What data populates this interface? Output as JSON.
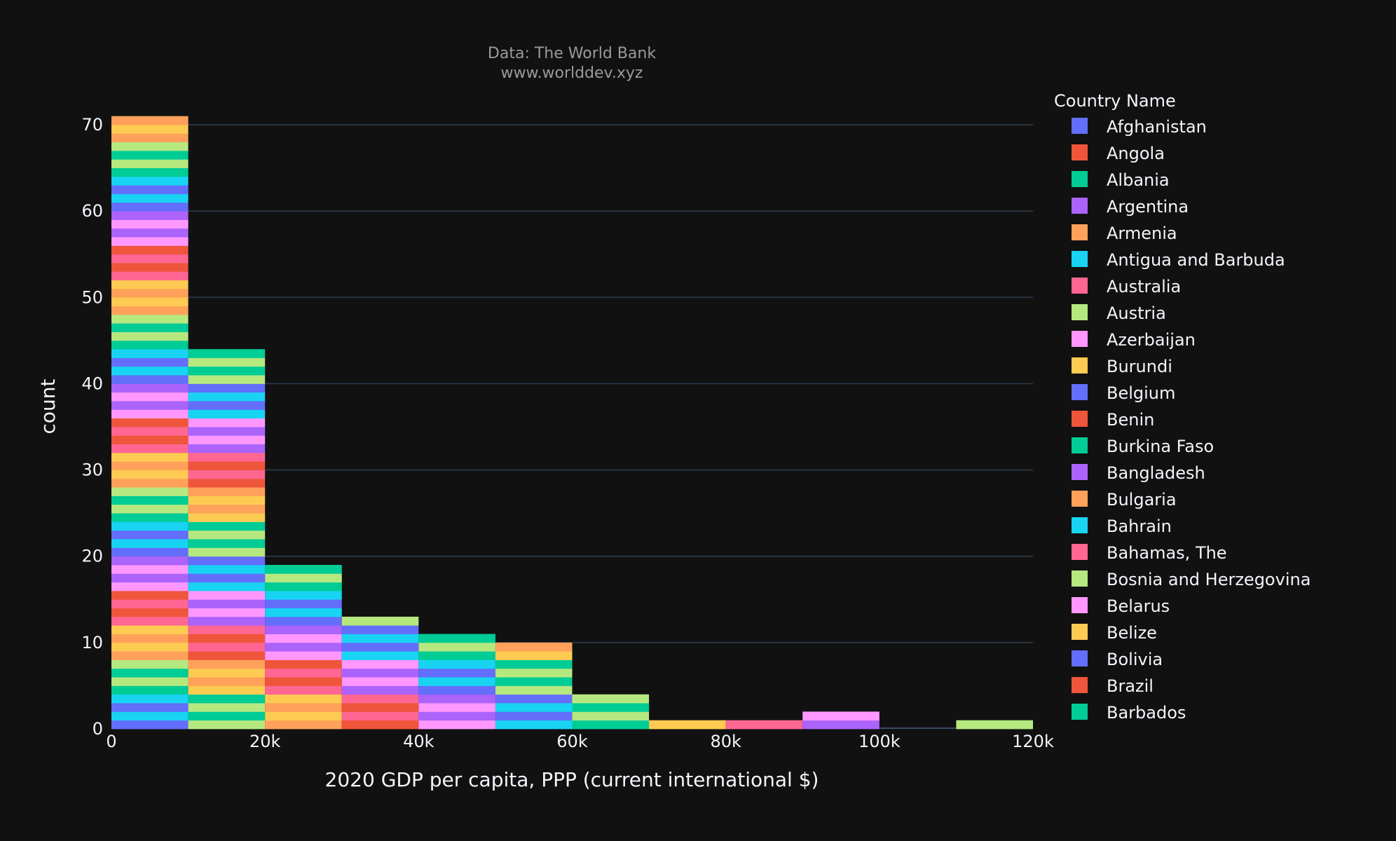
{
  "chart_data": {
    "type": "bar",
    "title": "Data: The World Bank",
    "subtitle": "www.worlddev.xyz",
    "xlabel": "2020 GDP per capita, PPP (current international $)",
    "ylabel": "count",
    "xlim": [
      0,
      120000
    ],
    "ylim": [
      0,
      71
    ],
    "x_ticks": [
      {
        "value": 0,
        "label": "0"
      },
      {
        "value": 20000,
        "label": "20k"
      },
      {
        "value": 40000,
        "label": "40k"
      },
      {
        "value": 60000,
        "label": "60k"
      },
      {
        "value": 80000,
        "label": "80k"
      },
      {
        "value": 100000,
        "label": "100k"
      },
      {
        "value": 120000,
        "label": "120k"
      }
    ],
    "y_ticks": [
      {
        "value": 0,
        "label": "0"
      },
      {
        "value": 10,
        "label": "10"
      },
      {
        "value": 20,
        "label": "20"
      },
      {
        "value": 30,
        "label": "30"
      },
      {
        "value": 40,
        "label": "40"
      },
      {
        "value": 50,
        "label": "50"
      },
      {
        "value": 60,
        "label": "60"
      },
      {
        "value": 70,
        "label": "70"
      }
    ],
    "bin_size": 10000,
    "bins": [
      {
        "start": 0,
        "end": 10000,
        "count": 71
      },
      {
        "start": 10000,
        "end": 20000,
        "count": 44
      },
      {
        "start": 20000,
        "end": 30000,
        "count": 19
      },
      {
        "start": 30000,
        "end": 40000,
        "count": 13
      },
      {
        "start": 40000,
        "end": 50000,
        "count": 11
      },
      {
        "start": 50000,
        "end": 60000,
        "count": 10
      },
      {
        "start": 60000,
        "end": 70000,
        "count": 4
      },
      {
        "start": 70000,
        "end": 80000,
        "count": 1
      },
      {
        "start": 80000,
        "end": 90000,
        "count": 1
      },
      {
        "start": 90000,
        "end": 100000,
        "count": 2
      },
      {
        "start": 100000,
        "end": 110000,
        "count": 0
      },
      {
        "start": 110000,
        "end": 120000,
        "count": 1
      }
    ],
    "grid": true,
    "legend": {
      "title": "Country Name",
      "placement": "right",
      "items": [
        {
          "name": "Afghanistan",
          "color": "#636efa"
        },
        {
          "name": "Angola",
          "color": "#ef553b"
        },
        {
          "name": "Albania",
          "color": "#00cc96"
        },
        {
          "name": "Argentina",
          "color": "#ab63fa"
        },
        {
          "name": "Armenia",
          "color": "#ffa15a"
        },
        {
          "name": "Antigua and Barbuda",
          "color": "#19d3f3"
        },
        {
          "name": "Australia",
          "color": "#ff6692"
        },
        {
          "name": "Austria",
          "color": "#b6e880"
        },
        {
          "name": "Azerbaijan",
          "color": "#ff97ff"
        },
        {
          "name": "Burundi",
          "color": "#fecb52"
        },
        {
          "name": "Belgium",
          "color": "#636efa"
        },
        {
          "name": "Benin",
          "color": "#ef553b"
        },
        {
          "name": "Burkina Faso",
          "color": "#00cc96"
        },
        {
          "name": "Bangladesh",
          "color": "#ab63fa"
        },
        {
          "name": "Bulgaria",
          "color": "#ffa15a"
        },
        {
          "name": "Bahrain",
          "color": "#19d3f3"
        },
        {
          "name": "Bahamas, The",
          "color": "#ff6692"
        },
        {
          "name": "Bosnia and Herzegovina",
          "color": "#b6e880"
        },
        {
          "name": "Belarus",
          "color": "#ff97ff"
        },
        {
          "name": "Belize",
          "color": "#fecb52"
        },
        {
          "name": "Bolivia",
          "color": "#636efa"
        },
        {
          "name": "Brazil",
          "color": "#ef553b"
        },
        {
          "name": "Barbados",
          "color": "#00cc96"
        }
      ]
    },
    "palette": [
      "#636efa",
      "#ef553b",
      "#00cc96",
      "#ab63fa",
      "#ffa15a",
      "#19d3f3",
      "#ff6692",
      "#b6e880",
      "#ff97ff",
      "#fecb52"
    ]
  }
}
